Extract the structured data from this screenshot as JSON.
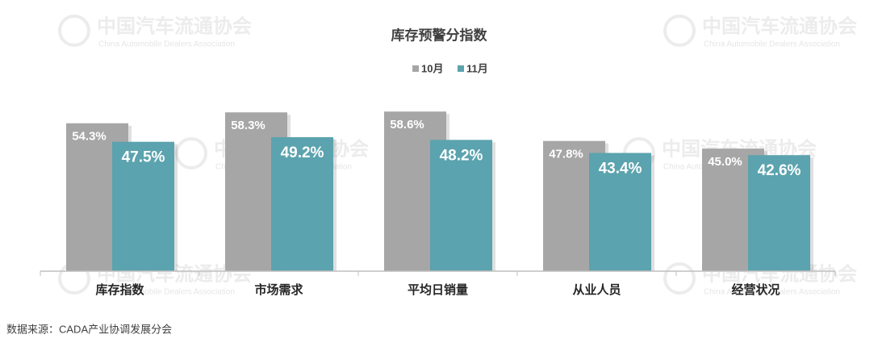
{
  "chart_data": {
    "type": "bar",
    "title": "库存预警分指数",
    "categories": [
      "库存指数",
      "市场需求",
      "平均日销量",
      "从业人员",
      "经营状况"
    ],
    "series": [
      {
        "name": "10月",
        "color": "#a6a6a6",
        "values": [
          54.3,
          58.3,
          58.6,
          47.8,
          45.0
        ],
        "value_labels": [
          "54.3%",
          "58.3%",
          "58.6%",
          "47.8%",
          "45.0%"
        ]
      },
      {
        "name": "11月",
        "color": "#5ba3ae",
        "values": [
          47.5,
          49.2,
          48.2,
          43.4,
          42.6
        ],
        "value_labels": [
          "47.5%",
          "49.2%",
          "48.2%",
          "43.4%",
          "42.6%"
        ]
      }
    ],
    "legend": "top"
  },
  "watermark": {
    "cn": "中国汽车流通协会",
    "en": "China Automobile Dealers Association"
  },
  "source": "数据来源：CADA产业协调发展分会"
}
